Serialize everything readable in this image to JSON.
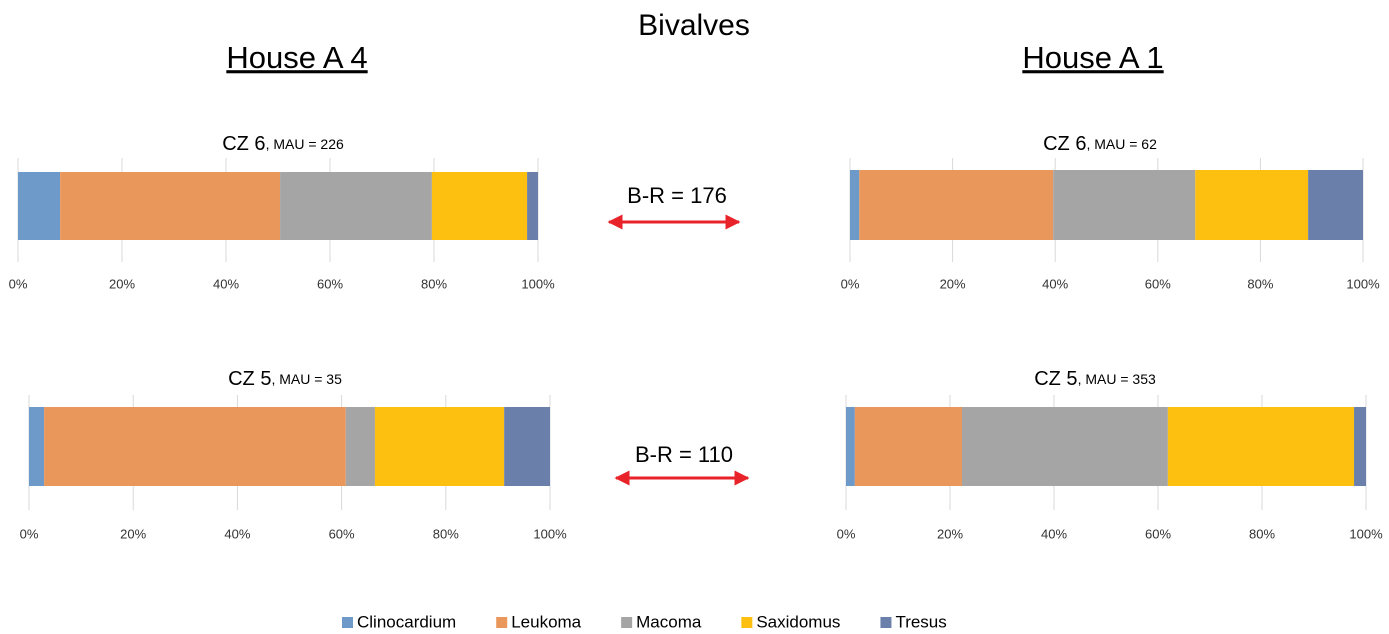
{
  "title": "Bivalves",
  "houses": [
    "House A 4",
    "House A 1"
  ],
  "annotations": [
    "B-R = 176",
    "B-R = 110"
  ],
  "series": [
    {
      "name": "Clinocardium",
      "color": "#6e9ac9"
    },
    {
      "name": "Leukoma",
      "color": "#e9975a"
    },
    {
      "name": "Macoma",
      "color": "#a5a5a5"
    },
    {
      "name": "Saxidomus",
      "color": "#fdc010"
    },
    {
      "name": "Tresus",
      "color": "#6a80aa"
    }
  ],
  "chart_data": [
    {
      "type": "bar",
      "orientation": "horizontal",
      "stacked": "percent",
      "title": "CZ 6",
      "subtitle": ", MAU = 226",
      "values": [
        8.1,
        42.3,
        29.2,
        18.3,
        2.1
      ],
      "xlim": [
        0,
        100
      ],
      "grid": true,
      "xticks": [
        {
          "value": 0,
          "label": "0%"
        },
        {
          "value": 20,
          "label": "20%"
        },
        {
          "value": 40,
          "label": "40%"
        },
        {
          "value": 60,
          "label": "60%"
        },
        {
          "value": 80,
          "label": "80%"
        },
        {
          "value": 100,
          "label": "100%"
        }
      ]
    },
    {
      "type": "bar",
      "orientation": "horizontal",
      "stacked": "percent",
      "title": "CZ 6",
      "subtitle": ", MAU = 62",
      "values": [
        1.8,
        37.8,
        27.7,
        22.0,
        10.7
      ],
      "xlim": [
        0,
        100
      ],
      "grid": true,
      "xticks": [
        {
          "value": 0,
          "label": "0%"
        },
        {
          "value": 20,
          "label": "20%"
        },
        {
          "value": 40,
          "label": "40%"
        },
        {
          "value": 60,
          "label": "60%"
        },
        {
          "value": 80,
          "label": "80%"
        },
        {
          "value": 100,
          "label": "100%"
        }
      ]
    },
    {
      "type": "bar",
      "orientation": "horizontal",
      "stacked": "percent",
      "title": "CZ 5",
      "subtitle": ", MAU = 35",
      "values": [
        2.9,
        57.9,
        5.6,
        24.8,
        8.8
      ],
      "xlim": [
        0,
        100
      ],
      "grid": true,
      "xticks": [
        {
          "value": 0,
          "label": "0%"
        },
        {
          "value": 20,
          "label": "20%"
        },
        {
          "value": 40,
          "label": "40%"
        },
        {
          "value": 60,
          "label": "60%"
        },
        {
          "value": 80,
          "label": "80%"
        },
        {
          "value": 100,
          "label": "100%"
        }
      ]
    },
    {
      "type": "bar",
      "orientation": "horizontal",
      "stacked": "percent",
      "title": "CZ 5",
      "subtitle": ", MAU = 353",
      "values": [
        1.7,
        20.6,
        39.6,
        35.8,
        2.3
      ],
      "xlim": [
        0,
        100
      ],
      "grid": true,
      "xticks": [
        {
          "value": 0,
          "label": "0%"
        },
        {
          "value": 20,
          "label": "20%"
        },
        {
          "value": 40,
          "label": "40%"
        },
        {
          "value": 60,
          "label": "60%"
        },
        {
          "value": 80,
          "label": "80%"
        },
        {
          "value": 100,
          "label": "100%"
        }
      ]
    }
  ]
}
